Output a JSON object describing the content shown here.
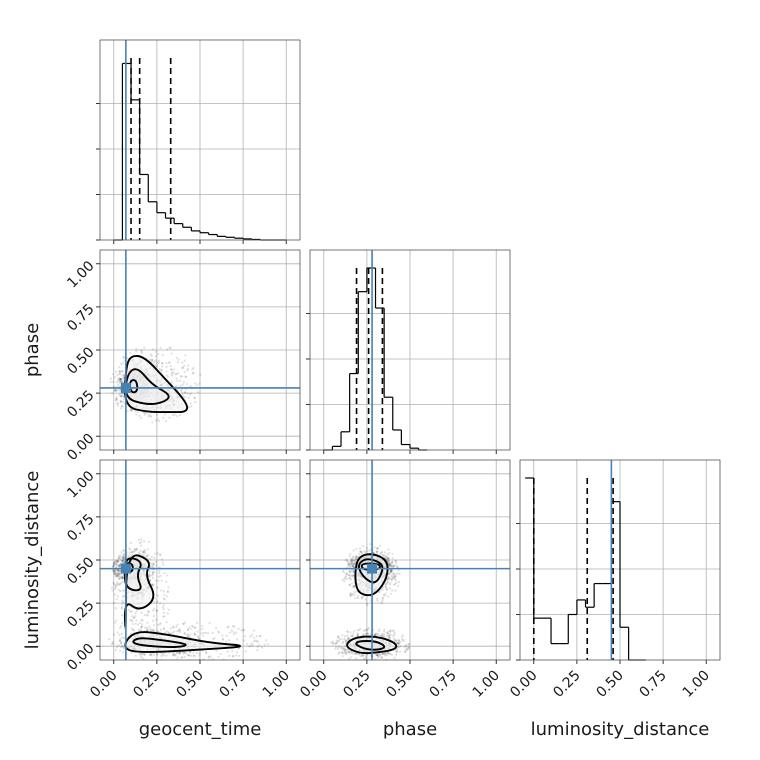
{
  "chart_data": {
    "type": "corner",
    "parameters": [
      "geocent_time",
      "phase",
      "luminosity_distance"
    ],
    "tick_labels": [
      "0.00",
      "0.25",
      "0.50",
      "0.75",
      "1.00"
    ],
    "range": [
      -0.08,
      1.08
    ],
    "grid": true,
    "truth_color": "#4682b4",
    "truths": {
      "geocent_time": 0.07,
      "phase": 0.28,
      "luminosity_distance": 0.45
    },
    "histograms": {
      "geocent_time": {
        "edges": [
          0.0,
          0.05,
          0.1,
          0.15,
          0.2,
          0.25,
          0.3,
          0.35,
          0.4,
          0.45,
          0.5,
          0.55,
          0.6,
          0.65,
          0.7,
          0.75,
          0.8,
          0.85,
          0.9,
          0.95,
          1.0
        ],
        "counts": [
          0,
          0.97,
          0.77,
          0.36,
          0.21,
          0.15,
          0.12,
          0.09,
          0.07,
          0.05,
          0.04,
          0.03,
          0.02,
          0.015,
          0.01,
          0.006,
          0.003,
          0,
          0,
          0
        ],
        "quantiles": [
          0.1,
          0.15,
          0.33
        ]
      },
      "phase": {
        "edges": [
          0.0,
          0.05,
          0.1,
          0.15,
          0.2,
          0.25,
          0.3,
          0.35,
          0.4,
          0.45,
          0.5,
          0.55,
          0.6
        ],
        "counts": [
          0,
          0.02,
          0.1,
          0.42,
          0.87,
          1.0,
          0.78,
          0.29,
          0.11,
          0.03,
          0.01,
          0
        ],
        "quantiles": [
          0.19,
          0.26,
          0.34
        ]
      },
      "luminosity_distance": {
        "edges": [
          -0.05,
          0.0,
          0.05,
          0.1,
          0.15,
          0.2,
          0.25,
          0.3,
          0.35,
          0.4,
          0.45,
          0.5,
          0.55,
          0.6,
          0.65
        ],
        "counts": [
          1.0,
          0.23,
          0.23,
          0.09,
          0.09,
          0.25,
          0.33,
          0.29,
          0.42,
          0.42,
          0.87,
          0.18,
          0.0,
          0.0
        ],
        "quantiles": [
          0.0,
          0.31,
          0.46
        ]
      }
    },
    "pairs": [
      {
        "x": "geocent_time",
        "y": "phase",
        "density_center": [
          0.12,
          0.28
        ],
        "contours": [
          [
            [
              0.1,
              0.25
            ],
            [
              0.14,
              0.26
            ],
            [
              0.13,
              0.33
            ],
            [
              0.09,
              0.32
            ]
          ],
          [
            [
              0.06,
              0.22
            ],
            [
              0.2,
              0.18
            ],
            [
              0.3,
              0.2
            ],
            [
              0.33,
              0.24
            ],
            [
              0.22,
              0.3
            ],
            [
              0.14,
              0.4
            ],
            [
              0.08,
              0.37
            ]
          ],
          [
            [
              0.06,
              0.17
            ],
            [
              0.2,
              0.14
            ],
            [
              0.32,
              0.14
            ],
            [
              0.43,
              0.14
            ],
            [
              0.42,
              0.2
            ],
            [
              0.3,
              0.33
            ],
            [
              0.18,
              0.46
            ],
            [
              0.1,
              0.47
            ],
            [
              0.07,
              0.4
            ]
          ]
        ]
      },
      {
        "x": "geocent_time",
        "y": "luminosity_distance",
        "density_center": [
          0.08,
          0.45
        ],
        "contours": [
          [
            [
              0.06,
              0.43
            ],
            [
              0.11,
              0.43
            ],
            [
              0.11,
              0.48
            ],
            [
              0.06,
              0.48
            ]
          ],
          [
            [
              0.07,
              0.33
            ],
            [
              0.17,
              0.32
            ],
            [
              0.13,
              0.41
            ],
            [
              0.17,
              0.49
            ],
            [
              0.08,
              0.52
            ],
            [
              0.06,
              0.45
            ]
          ],
          [
            [
              0.07,
              0.03
            ],
            [
              0.06,
              0.27
            ],
            [
              0.15,
              0.2
            ],
            [
              0.25,
              0.28
            ],
            [
              0.18,
              0.41
            ],
            [
              0.22,
              0.5
            ],
            [
              0.07,
              0.55
            ]
          ],
          [
            [
              0.05,
              0.0
            ],
            [
              0.12,
              -0.04
            ],
            [
              0.5,
              -0.02
            ],
            [
              0.8,
              0.0
            ],
            [
              0.55,
              0.02
            ],
            [
              0.3,
              0.07
            ],
            [
              0.12,
              0.09
            ]
          ],
          [
            [
              0.1,
              0.01
            ],
            [
              0.35,
              -0.01
            ],
            [
              0.45,
              0.01
            ],
            [
              0.25,
              0.04
            ],
            [
              0.13,
              0.05
            ]
          ]
        ]
      },
      {
        "x": "phase",
        "y": "luminosity_distance",
        "density_center": [
          0.28,
          0.45
        ],
        "contours": [
          [
            [
              0.22,
              0.45
            ],
            [
              0.27,
              0.44
            ],
            [
              0.33,
              0.45
            ],
            [
              0.32,
              0.48
            ],
            [
              0.22,
              0.48
            ]
          ],
          [
            [
              0.2,
              0.45
            ],
            [
              0.24,
              0.39
            ],
            [
              0.3,
              0.36
            ],
            [
              0.34,
              0.43
            ],
            [
              0.34,
              0.48
            ],
            [
              0.26,
              0.51
            ],
            [
              0.21,
              0.49
            ]
          ],
          [
            [
              0.18,
              0.43
            ],
            [
              0.19,
              0.32
            ],
            [
              0.25,
              0.29
            ],
            [
              0.31,
              0.31
            ],
            [
              0.37,
              0.4
            ],
            [
              0.37,
              0.5
            ],
            [
              0.28,
              0.54
            ],
            [
              0.2,
              0.52
            ]
          ],
          [
            [
              0.12,
              0.0
            ],
            [
              0.2,
              -0.04
            ],
            [
              0.28,
              -0.04
            ],
            [
              0.42,
              -0.02
            ],
            [
              0.42,
              0.02
            ],
            [
              0.3,
              0.06
            ],
            [
              0.17,
              0.05
            ]
          ],
          [
            [
              0.18,
              0.01
            ],
            [
              0.25,
              -0.02
            ],
            [
              0.33,
              -0.02
            ],
            [
              0.36,
              0.0
            ],
            [
              0.3,
              0.03
            ],
            [
              0.2,
              0.03
            ]
          ]
        ]
      }
    ]
  }
}
